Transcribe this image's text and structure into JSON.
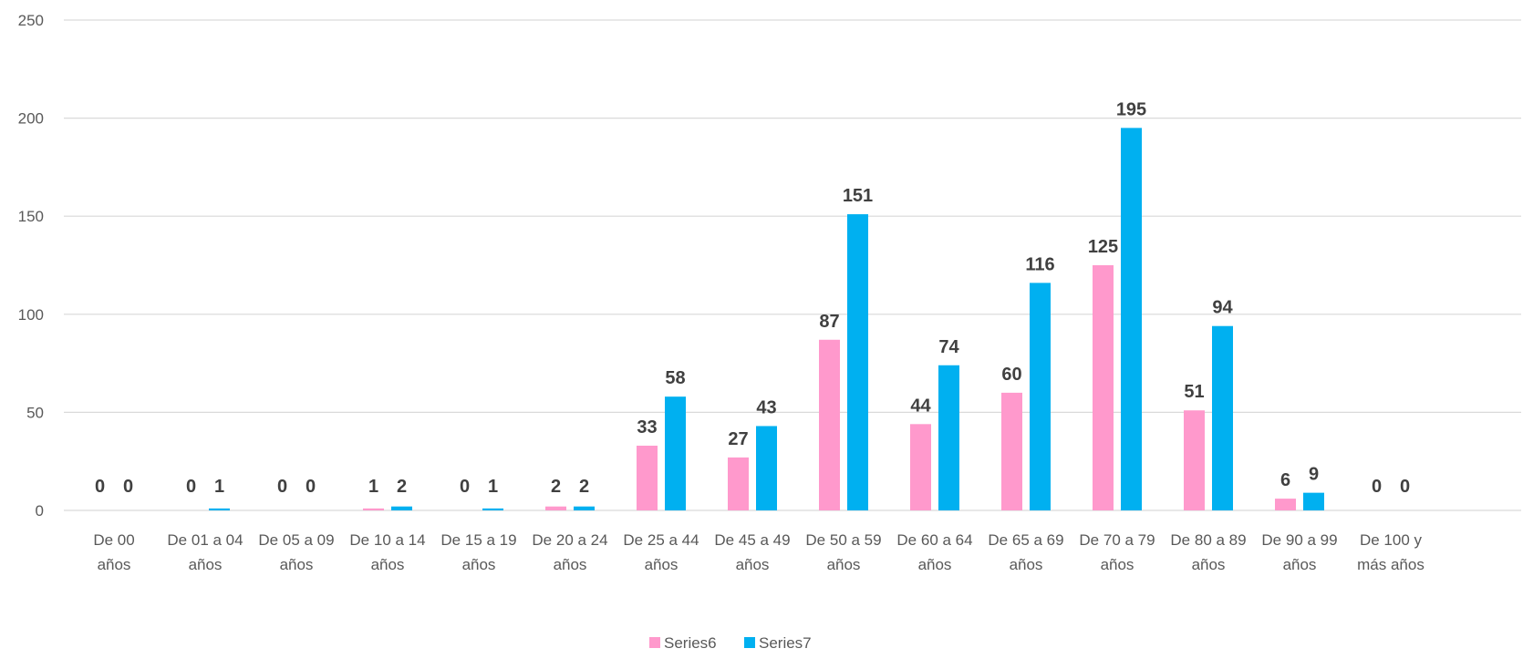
{
  "chart_data": {
    "type": "bar",
    "categories": [
      [
        "De 00",
        "años"
      ],
      [
        "De 01 a 04",
        "años"
      ],
      [
        "De 05 a 09",
        "años"
      ],
      [
        "De 10 a 14",
        "años"
      ],
      [
        "De 15 a 19",
        "años"
      ],
      [
        "De 20 a 24",
        "años"
      ],
      [
        "De 25 a 44",
        "años"
      ],
      [
        "De 45 a 49",
        "años"
      ],
      [
        "De 50 a 59",
        "años"
      ],
      [
        "De 60 a 64",
        "años"
      ],
      [
        "De 65 a 69",
        "años"
      ],
      [
        "De 70 a 79",
        "años"
      ],
      [
        "De 80 a 89",
        "años"
      ],
      [
        "De 90 a 99",
        "años"
      ],
      [
        "De 100 y",
        "más años"
      ]
    ],
    "series": [
      {
        "name": "Series6",
        "color": "#FF99CC",
        "values": [
          0,
          0,
          0,
          1,
          0,
          2,
          33,
          27,
          87,
          44,
          60,
          125,
          51,
          6,
          0
        ]
      },
      {
        "name": "Series7",
        "color": "#00B0F0",
        "values": [
          0,
          1,
          0,
          2,
          1,
          2,
          58,
          43,
          151,
          74,
          116,
          195,
          94,
          9,
          0
        ]
      }
    ],
    "ylim": [
      0,
      250
    ],
    "yticks": [
      0,
      50,
      100,
      150,
      200,
      250
    ],
    "grid": true,
    "legend": "bottom-center",
    "gridColor": "#D9D9D9"
  }
}
